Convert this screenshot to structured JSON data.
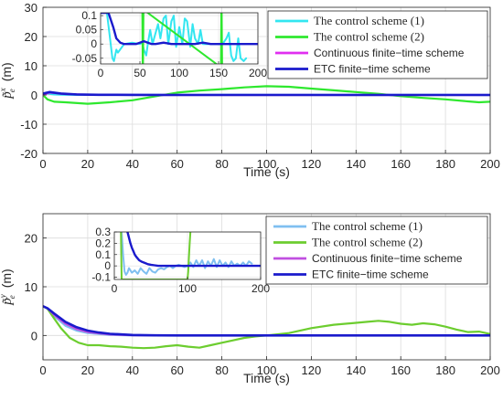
{
  "chart_data": [
    {
      "type": "line",
      "title": "",
      "xlabel": "Time (s)",
      "ylabel_base": "p̃",
      "ylabel_sub": "e",
      "ylabel_sup": "x",
      "ylabel_unit": "(m)",
      "xlim": [
        0,
        200
      ],
      "ylim": [
        -20,
        30
      ],
      "xticks": [
        0,
        20,
        40,
        60,
        80,
        100,
        120,
        140,
        160,
        180,
        200
      ],
      "yticks": [
        -20,
        -10,
        0,
        10,
        20,
        30
      ],
      "grid": true,
      "legend_position": "top-right",
      "series": [
        {
          "name": "The control scheme (1)",
          "color": "#33e6f0",
          "x": [
            0,
            2,
            5,
            10,
            20,
            40,
            60,
            80,
            100,
            120,
            140,
            160,
            180,
            200
          ],
          "y": [
            0,
            0.5,
            0.2,
            0.05,
            0.02,
            0.05,
            0.05,
            0.08,
            0.05,
            0.03,
            0.05,
            0.02,
            0.02,
            0
          ]
        },
        {
          "name": "The control scheme (2)",
          "color": "#2ee82e",
          "x": [
            0,
            2,
            5,
            10,
            20,
            30,
            40,
            50,
            60,
            70,
            80,
            90,
            100,
            110,
            120,
            130,
            140,
            150,
            155,
            160,
            170,
            180,
            190,
            195,
            200
          ],
          "y": [
            0,
            -1.5,
            -2.3,
            -2.5,
            -3,
            -2.5,
            -1.8,
            -0.5,
            0.8,
            1.5,
            2,
            2.6,
            3,
            2.8,
            2.2,
            1.6,
            1,
            0.4,
            0,
            -0.4,
            -1,
            -1.5,
            -2.2,
            -2.5,
            -2.3
          ]
        },
        {
          "name": "Continuous finite−time scheme",
          "color": "#e02ff0",
          "x": [
            0,
            3,
            10,
            20,
            30,
            50,
            200
          ],
          "y": [
            0,
            0.8,
            0.3,
            0.1,
            0.05,
            0,
            0
          ]
        },
        {
          "name": "ETC finite−time scheme",
          "color": "#1a1acc",
          "x": [
            0,
            3,
            8,
            15,
            25,
            40,
            60,
            100,
            150,
            200
          ],
          "y": [
            0.5,
            1.0,
            0.5,
            0.2,
            0.05,
            0.02,
            0,
            0,
            0,
            0
          ]
        }
      ],
      "inset": {
        "xlim": [
          0,
          200
        ],
        "ylim": [
          -0.07,
          0.11
        ],
        "xticks": [
          0,
          50,
          100,
          150,
          200
        ],
        "yticks": [
          -0.05,
          0,
          0.05,
          0.1
        ],
        "ytick_labels": [
          "-0.05",
          "0",
          "0.05",
          "0.1"
        ],
        "series": [
          {
            "name": "The control scheme (1)",
            "color": "#33e6f0",
            "x": [
              8,
              12,
              15,
              17,
              20,
              22,
              30,
              40,
              50,
              53,
              55,
              58,
              60,
              63,
              66,
              70,
              73,
              76,
              80,
              83,
              86,
              90,
              93,
              96,
              100,
              104,
              107,
              110,
              114,
              117,
              120,
              124,
              127,
              130,
              134,
              137,
              140,
              145,
              150,
              155,
              160,
              163,
              166,
              169,
              172,
              175,
              178,
              182,
              185
            ],
            "y": [
              0.11,
              0.02,
              -0.05,
              -0.06,
              -0.02,
              -0.03,
              0.0,
              0.005,
              0.0,
              0.005,
              -0.02,
              -0.04,
              0.0,
              0.05,
              0.0,
              0.04,
              0.07,
              0.02,
              0.09,
              0.1,
              0.0,
              0.08,
              0.1,
              -0.01,
              0.06,
              0.0,
              0.09,
              0.08,
              -0.01,
              0.07,
              0.02,
              0.0,
              0.05,
              0.0,
              0.0,
              0.0,
              0.0,
              0.0,
              0.0,
              0.0,
              0.02,
              0.04,
              -0.04,
              -0.06,
              -0.05,
              0.02,
              -0.05,
              -0.06,
              -0.05
            ]
          },
          {
            "name": "The control scheme (2)",
            "color": "#2ee82e",
            "x": [
              52,
              53,
              53.5,
              54,
              54.5,
              55,
              152,
              153,
              153.5,
              154,
              154.5,
              155
            ],
            "y": [
              0.12,
              0.12,
              -0.08,
              -0.08,
              0.12,
              0.12,
              -0.08,
              -0.08,
              0.12,
              0.12,
              -0.08,
              -0.08
            ]
          },
          {
            "name": "ETC finite−time scheme",
            "color": "#1a1acc",
            "x": [
              0,
              10,
              16,
              20,
              25,
              30,
              35,
              40,
              45,
              50,
              55,
              60,
              65,
              70,
              80,
              90,
              100,
              110,
              120,
              130,
              140,
              150,
              160,
              170,
              180,
              190,
              200
            ],
            "y": [
              0.11,
              0.11,
              0.06,
              0.02,
              0.005,
              0.0,
              0.0,
              0.0,
              0.0,
              0.005,
              0.01,
              0.005,
              0.0,
              0.0,
              0.005,
              0.0,
              0.0,
              0.0,
              0.0,
              0.005,
              0.0,
              0.0,
              0.0,
              0.0,
              0.0,
              0.0,
              0.0
            ]
          }
        ]
      }
    },
    {
      "type": "line",
      "title": "",
      "xlabel": "Time (s)",
      "ylabel_base": "p̃",
      "ylabel_sub": "e",
      "ylabel_sup": "y",
      "ylabel_unit": "(m)",
      "xlim": [
        0,
        200
      ],
      "ylim": [
        -5,
        25
      ],
      "xticks": [
        0,
        20,
        40,
        60,
        80,
        100,
        120,
        140,
        160,
        180,
        200
      ],
      "yticks": [
        0,
        10,
        20
      ],
      "grid": true,
      "legend_position": "top-right",
      "series": [
        {
          "name": "The control scheme (1)",
          "color": "#7fbff0",
          "x": [
            0,
            2,
            5,
            10,
            15,
            20,
            30,
            40,
            60,
            100,
            150,
            200
          ],
          "y": [
            6,
            5.5,
            4,
            2,
            1,
            0.5,
            0.1,
            0,
            0,
            0,
            0,
            0
          ]
        },
        {
          "name": "The control scheme (2)",
          "color": "#6ccd2f",
          "x": [
            0,
            2,
            5,
            8,
            12,
            16,
            20,
            25,
            30,
            35,
            40,
            45,
            50,
            55,
            60,
            65,
            70,
            75,
            80,
            85,
            90,
            95,
            100,
            110,
            120,
            130,
            140,
            145,
            150,
            155,
            160,
            165,
            170,
            175,
            180,
            185,
            190,
            195,
            200
          ],
          "y": [
            6,
            5.5,
            3.5,
            1.5,
            -0.5,
            -1.5,
            -2,
            -2,
            -2.2,
            -2.3,
            -2.5,
            -2.6,
            -2.5,
            -2.2,
            -2,
            -2.3,
            -2.5,
            -2,
            -1.5,
            -1,
            -0.5,
            -0.2,
            0,
            0.5,
            1.5,
            2.2,
            2.6,
            2.8,
            3,
            2.8,
            2.4,
            2.2,
            2.5,
            2.3,
            1.8,
            1.2,
            0.7,
            0.8,
            0.3
          ]
        },
        {
          "name": "Continuous finite−time scheme",
          "color": "#c04fe0",
          "x": [
            0,
            2,
            5,
            10,
            15,
            20,
            30,
            40,
            60,
            200
          ],
          "y": [
            6,
            5.6,
            4.2,
            2.4,
            1.3,
            0.7,
            0.2,
            0.05,
            0,
            0
          ]
        },
        {
          "name": "ETC finite−time scheme",
          "color": "#1a1acc",
          "x": [
            0,
            2,
            5,
            10,
            15,
            20,
            25,
            30,
            40,
            50,
            60,
            80,
            100,
            150,
            200
          ],
          "y": [
            6,
            5.6,
            4.5,
            2.8,
            1.7,
            1.0,
            0.6,
            0.35,
            0.1,
            0.03,
            0,
            0,
            0,
            0,
            0
          ]
        }
      ],
      "inset": {
        "xlim": [
          0,
          200
        ],
        "ylim": [
          -0.12,
          0.3
        ],
        "xticks": [
          0,
          100,
          200
        ],
        "yticks": [
          -0.1,
          0,
          0.1,
          0.2,
          0.3
        ],
        "ytick_labels": [
          "-0.1",
          "0",
          "0.1",
          "0.2",
          "0.3"
        ],
        "series": [
          {
            "name": "The control scheme (1)",
            "color": "#7fbff0",
            "x": [
              10,
              12,
              14,
              16,
              18,
              20,
              24,
              28,
              32,
              36,
              40,
              44,
              48,
              52,
              56,
              60,
              64,
              68,
              72,
              76,
              80,
              84,
              88,
              92,
              96,
              100,
              104,
              108,
              112,
              116,
              120,
              124,
              128,
              132,
              136,
              140,
              144,
              148,
              152,
              156,
              160,
              164,
              168,
              172,
              176,
              180,
              184,
              188
            ],
            "y": [
              0.3,
              0.1,
              -0.05,
              -0.08,
              -0.06,
              -0.02,
              -0.06,
              -0.04,
              -0.07,
              -0.02,
              -0.05,
              -0.07,
              -0.02,
              -0.05,
              -0.06,
              -0.03,
              -0.02,
              -0.03,
              -0.01,
              0.0,
              -0.02,
              0.0,
              0.01,
              0.0,
              -0.01,
              0.0,
              0.03,
              -0.01,
              0.05,
              0.0,
              0.05,
              -0.02,
              0.04,
              0.0,
              0.06,
              -0.01,
              0.05,
              0.0,
              0.03,
              -0.01,
              0.04,
              0.0,
              0.02,
              0.0,
              0.03,
              0.0,
              0.04,
              0.02
            ]
          },
          {
            "name": "The control scheme (2)",
            "color": "#6ccd2f",
            "x": [
              8,
              9,
              10,
              11,
              100,
              101,
              102,
              103,
              104,
              105
            ],
            "y": [
              0.32,
              0.32,
              -0.12,
              -0.12,
              -0.12,
              -0.05,
              0.08,
              0.2,
              0.3,
              0.32
            ]
          },
          {
            "name": "ETC finite−time scheme",
            "color": "#1a1acc",
            "x": [
              15,
              18,
              20,
              22,
              24,
              26,
              28,
              30,
              34,
              38,
              42,
              46,
              50,
              55,
              60,
              70,
              80,
              90,
              100,
              110,
              120,
              130,
              140,
              150,
              160,
              170,
              180,
              190,
              200
            ],
            "y": [
              0.32,
              0.3,
              0.25,
              0.2,
              0.16,
              0.13,
              0.1,
              0.08,
              0.05,
              0.035,
              0.025,
              0.015,
              0.01,
              0.005,
              0.0,
              0.0,
              0.0,
              0.0,
              0.0,
              0.0,
              0.0,
              0.0,
              0.0,
              0.0,
              0.0,
              0.0,
              0.0,
              0.0,
              0.0
            ]
          }
        ]
      }
    }
  ]
}
